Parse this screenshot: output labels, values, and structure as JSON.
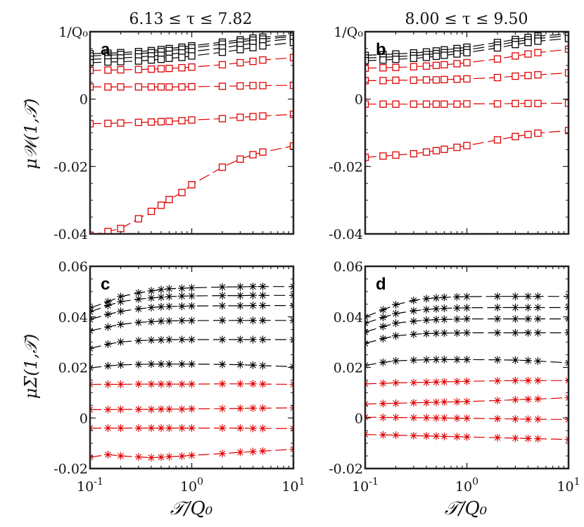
{
  "chart_data": {
    "type": "scatter",
    "column_titles": [
      "6.13 ≤ τ ≤ 7.82",
      "8.00 ≤ τ ≤ 9.50"
    ],
    "xlabel": "𝒯/Q₀",
    "xscale": "log",
    "xlim": [
      0.1,
      10
    ],
    "xticks": [
      0.1,
      1,
      10
    ],
    "xtick_labels": [
      {
        "base": "10",
        "exp": "-1"
      },
      {
        "base": "10",
        "exp": "0"
      },
      {
        "base": "10",
        "exp": "1"
      }
    ],
    "x_points": [
      0.1,
      0.15,
      0.2,
      0.3,
      0.4,
      0.5,
      0.6,
      0.8,
      1.0,
      2,
      3,
      4,
      5,
      10
    ],
    "colors": {
      "black": "#000000",
      "red": "#e00000"
    },
    "panels": [
      {
        "label": "a",
        "ylabel": "μ𝒲(1,𝒯)",
        "ylim": [
          -0.04,
          0.02
        ],
        "yticks": [
          -0.04,
          -0.02,
          0,
          0.02
        ],
        "ytick_labels": [
          "-0.04",
          "-0.02",
          "0",
          "1/Q₀"
        ],
        "reference_line": {
          "y": 0.02,
          "style": "dash-dot"
        },
        "marker": "square",
        "series": [
          {
            "color": "black",
            "values": [
              0.0135,
              0.0136,
              0.0138,
              0.0141,
              0.0144,
              0.0147,
              0.015,
              0.0154,
              0.0158,
              0.0169,
              0.0176,
              0.0181,
              0.0184,
              0.019
            ]
          },
          {
            "color": "black",
            "values": [
              0.0128,
              0.013,
              0.0132,
              0.0135,
              0.0138,
              0.0141,
              0.0144,
              0.0148,
              0.0152,
              0.0163,
              0.017,
              0.0175,
              0.0178,
              0.0186
            ]
          },
          {
            "color": "black",
            "values": [
              0.0118,
              0.012,
              0.0122,
              0.0125,
              0.0128,
              0.013,
              0.0133,
              0.0137,
              0.0141,
              0.0152,
              0.016,
              0.0166,
              0.017,
              0.018
            ]
          },
          {
            "color": "black",
            "values": [
              0.0108,
              0.011,
              0.0111,
              0.0113,
              0.0116,
              0.0118,
              0.0121,
              0.0124,
              0.0128,
              0.0139,
              0.0147,
              0.0153,
              0.0158,
              0.0168
            ]
          },
          {
            "color": "red",
            "values": [
              0.0085,
              0.0086,
              0.0087,
              0.0088,
              0.0089,
              0.009,
              0.0091,
              0.0093,
              0.0095,
              0.0102,
              0.0108,
              0.0112,
              0.0116,
              0.0123
            ]
          },
          {
            "color": "red",
            "values": [
              0.0036,
              0.0036,
              0.0036,
              0.0036,
              0.0036,
              0.0036,
              0.0036,
              0.0036,
              0.0037,
              0.0038,
              0.0039,
              0.004,
              0.004,
              0.0041
            ]
          },
          {
            "color": "red",
            "values": [
              -0.0073,
              -0.0072,
              -0.0071,
              -0.0069,
              -0.0068,
              -0.0067,
              -0.0066,
              -0.0064,
              -0.0062,
              -0.0058,
              -0.0054,
              -0.0052,
              -0.005,
              -0.0045
            ]
          },
          {
            "color": "red",
            "values": [
              -0.0404,
              -0.0393,
              -0.0384,
              -0.0355,
              -0.0333,
              -0.0315,
              -0.0298,
              -0.0277,
              -0.0254,
              -0.0202,
              -0.0178,
              -0.0165,
              -0.0157,
              -0.0139
            ]
          }
        ]
      },
      {
        "label": "b",
        "ylabel": "",
        "ylim": [
          -0.04,
          0.02
        ],
        "yticks": [
          -0.04,
          -0.02,
          0,
          0.02
        ],
        "ytick_labels": [
          "-0.04",
          "-0.02",
          "0",
          "1/Q₀"
        ],
        "reference_line": {
          "y": 0.02,
          "style": "dash-dot"
        },
        "marker": "square",
        "series": [
          {
            "color": "black",
            "values": [
              0.013,
              0.0132,
              0.0134,
              0.0137,
              0.014,
              0.0143,
              0.0146,
              0.015,
              0.0154,
              0.0168,
              0.0177,
              0.0183,
              0.0187,
              0.0193
            ]
          },
          {
            "color": "black",
            "values": [
              0.0122,
              0.0124,
              0.0126,
              0.0129,
              0.0132,
              0.0135,
              0.0138,
              0.0142,
              0.0146,
              0.016,
              0.017,
              0.0176,
              0.018,
              0.0188
            ]
          },
          {
            "color": "black",
            "values": [
              0.0114,
              0.0116,
              0.0118,
              0.0121,
              0.0124,
              0.0127,
              0.013,
              0.0134,
              0.0138,
              0.0152,
              0.0162,
              0.0168,
              0.0172,
              0.018
            ]
          },
          {
            "color": "red",
            "values": [
              0.0092,
              0.0093,
              0.0094,
              0.0096,
              0.0098,
              0.01,
              0.0102,
              0.0105,
              0.0108,
              0.0119,
              0.0128,
              0.0134,
              0.0138,
              0.0148
            ]
          },
          {
            "color": "red",
            "values": [
              0.0055,
              0.0055,
              0.0056,
              0.0056,
              0.0057,
              0.0057,
              0.0058,
              0.0059,
              0.006,
              0.0064,
              0.0068,
              0.007,
              0.0072,
              0.0078
            ]
          },
          {
            "color": "red",
            "values": [
              -0.0015,
              -0.0015,
              -0.0015,
              -0.0015,
              -0.0015,
              -0.0015,
              -0.0015,
              -0.0015,
              -0.0014,
              -0.0014,
              -0.0013,
              -0.0013,
              -0.0013,
              -0.0012
            ]
          },
          {
            "color": "red",
            "values": [
              -0.0173,
              -0.0169,
              -0.0166,
              -0.0162,
              -0.0157,
              -0.0153,
              -0.0149,
              -0.0143,
              -0.0138,
              -0.0121,
              -0.0111,
              -0.0105,
              -0.0101,
              -0.0093
            ]
          }
        ]
      },
      {
        "label": "c",
        "ylabel": "μΣ(1,𝒯)",
        "ylim": [
          -0.02,
          0.06
        ],
        "yticks": [
          -0.02,
          0,
          0.02,
          0.04,
          0.06
        ],
        "ytick_labels": [
          "-0.02",
          "0",
          "0.02",
          "0.04",
          "0.06"
        ],
        "marker": "asterisk",
        "series": [
          {
            "color": "black",
            "values": [
              0.0435,
              0.046,
              0.048,
              0.0495,
              0.0503,
              0.0508,
              0.0511,
              0.0513,
              0.0515,
              0.0518,
              0.0519,
              0.052,
              0.052,
              0.052
            ]
          },
          {
            "color": "black",
            "values": [
              0.042,
              0.0445,
              0.046,
              0.047,
              0.0475,
              0.0478,
              0.048,
              0.0482,
              0.0483,
              0.0484,
              0.0484,
              0.0485,
              0.0485,
              0.0485
            ]
          },
          {
            "color": "black",
            "values": [
              0.039,
              0.041,
              0.0422,
              0.0432,
              0.0437,
              0.044,
              0.0441,
              0.0442,
              0.0443,
              0.0444,
              0.0444,
              0.0445,
              0.0445,
              0.0445
            ]
          },
          {
            "color": "black",
            "values": [
              0.0345,
              0.036,
              0.037,
              0.0378,
              0.0381,
              0.0383,
              0.0384,
              0.0385,
              0.0385,
              0.0386,
              0.0386,
              0.0386,
              0.0386,
              0.0386
            ]
          },
          {
            "color": "black",
            "values": [
              0.0275,
              0.0292,
              0.0301,
              0.0306,
              0.0308,
              0.0309,
              0.031,
              0.031,
              0.031,
              0.031,
              0.031,
              0.031,
              0.031,
              0.031
            ]
          },
          {
            "color": "black",
            "values": [
              0.0198,
              0.0206,
              0.021,
              0.0212,
              0.0213,
              0.0213,
              0.0213,
              0.0213,
              0.0213,
              0.0212,
              0.0211,
              0.0209,
              0.0207,
              0.0203
            ]
          },
          {
            "color": "red",
            "values": [
              0.0133,
              0.0133,
              0.0133,
              0.0134,
              0.0134,
              0.0134,
              0.0134,
              0.0134,
              0.0134,
              0.0135,
              0.0135,
              0.0135,
              0.0134,
              0.0133
            ]
          },
          {
            "color": "red",
            "values": [
              0.0033,
              0.0033,
              0.0034,
              0.0034,
              0.0034,
              0.0035,
              0.0035,
              0.0035,
              0.0036,
              0.0037,
              0.0038,
              0.0039,
              0.0039,
              0.004
            ]
          },
          {
            "color": "red",
            "values": [
              -0.004,
              -0.004,
              -0.004,
              -0.004,
              -0.004,
              -0.004,
              -0.004,
              -0.004,
              -0.004,
              -0.004,
              -0.004,
              -0.0041,
              -0.0041,
              -0.0042
            ]
          },
          {
            "color": "red",
            "values": [
              -0.0155,
              -0.0145,
              -0.015,
              -0.0154,
              -0.0157,
              -0.0155,
              -0.0153,
              -0.0151,
              -0.0148,
              -0.0141,
              -0.0136,
              -0.0133,
              -0.0131,
              -0.0124
            ]
          }
        ]
      },
      {
        "label": "d",
        "ylabel": "",
        "ylim": [
          -0.02,
          0.06
        ],
        "yticks": [
          -0.02,
          0,
          0.02,
          0.04,
          0.06
        ],
        "ytick_labels": [
          "-0.02",
          "0",
          "0.02",
          "0.04",
          "0.06"
        ],
        "marker": "asterisk",
        "series": [
          {
            "color": "black",
            "values": [
              0.04,
              0.0428,
              0.0448,
              0.0465,
              0.0472,
              0.0475,
              0.0477,
              0.0479,
              0.048,
              0.0481,
              0.0481,
              0.0481,
              0.0481,
              0.0481
            ]
          },
          {
            "color": "black",
            "values": [
              0.0375,
              0.0398,
              0.0413,
              0.0424,
              0.0429,
              0.0432,
              0.0434,
              0.0435,
              0.0436,
              0.0437,
              0.0437,
              0.0437,
              0.0437,
              0.0437
            ]
          },
          {
            "color": "black",
            "values": [
              0.034,
              0.0362,
              0.0375,
              0.0383,
              0.0387,
              0.0389,
              0.039,
              0.0391,
              0.0392,
              0.0392,
              0.0392,
              0.0392,
              0.0392,
              0.0392
            ]
          },
          {
            "color": "black",
            "values": [
              0.0295,
              0.0314,
              0.0325,
              0.0331,
              0.0334,
              0.0335,
              0.0336,
              0.0336,
              0.0337,
              0.0337,
              0.0337,
              0.0337,
              0.0337,
              0.0337
            ]
          },
          {
            "color": "black",
            "values": [
              0.0208,
              0.022,
              0.0226,
              0.0229,
              0.023,
              0.0231,
              0.0231,
              0.0231,
              0.0231,
              0.023,
              0.0229,
              0.0227,
              0.0225,
              0.0218
            ]
          },
          {
            "color": "red",
            "values": [
              0.0135,
              0.0137,
              0.0139,
              0.014,
              0.0141,
              0.0142,
              0.0143,
              0.0144,
              0.0145,
              0.0147,
              0.0148,
              0.0148,
              0.0148,
              0.0148
            ]
          },
          {
            "color": "red",
            "values": [
              0.0055,
              0.0057,
              0.0058,
              0.006,
              0.0061,
              0.0062,
              0.0063,
              0.0064,
              0.0065,
              0.0069,
              0.0072,
              0.0074,
              0.0075,
              0.008
            ]
          },
          {
            "color": "red",
            "values": [
              0.0003,
              0.0002,
              0.0002,
              0.0001,
              0.0001,
              0.0,
              0.0,
              -0.0001,
              -0.0001,
              -0.0003,
              -0.0004,
              -0.0005,
              -0.0005,
              -0.0006
            ]
          },
          {
            "color": "red",
            "values": [
              -0.0065,
              -0.0067,
              -0.0068,
              -0.007,
              -0.0071,
              -0.0072,
              -0.0073,
              -0.0074,
              -0.0075,
              -0.0078,
              -0.008,
              -0.0081,
              -0.0082,
              -0.0085
            ]
          }
        ]
      }
    ]
  }
}
